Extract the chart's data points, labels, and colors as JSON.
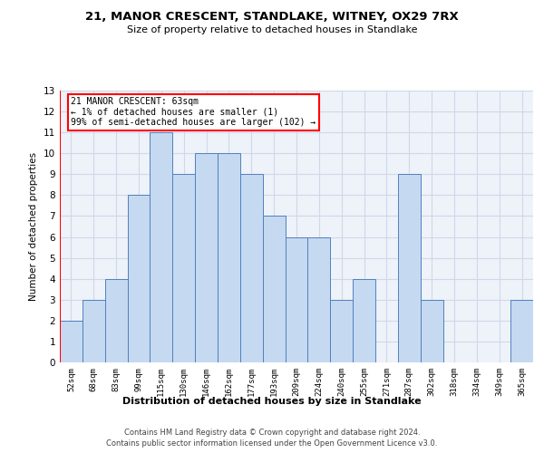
{
  "title": "21, MANOR CRESCENT, STANDLAKE, WITNEY, OX29 7RX",
  "subtitle": "Size of property relative to detached houses in Standlake",
  "xlabel": "Distribution of detached houses by size in Standlake",
  "ylabel": "Number of detached properties",
  "categories": [
    "52sqm",
    "68sqm",
    "83sqm",
    "99sqm",
    "115sqm",
    "130sqm",
    "146sqm",
    "162sqm",
    "177sqm",
    "193sqm",
    "209sqm",
    "224sqm",
    "240sqm",
    "255sqm",
    "271sqm",
    "287sqm",
    "302sqm",
    "318sqm",
    "334sqm",
    "349sqm",
    "365sqm"
  ],
  "values": [
    2,
    3,
    4,
    8,
    11,
    9,
    10,
    10,
    9,
    7,
    6,
    6,
    3,
    4,
    0,
    9,
    3,
    0,
    0,
    0,
    3
  ],
  "bar_color": "#c5d9f1",
  "bar_edge_color": "#4f81bd",
  "annotation_text": "21 MANOR CRESCENT: 63sqm\n← 1% of detached houses are smaller (1)\n99% of semi-detached houses are larger (102) →",
  "ylim": [
    0,
    13
  ],
  "yticks": [
    0,
    1,
    2,
    3,
    4,
    5,
    6,
    7,
    8,
    9,
    10,
    11,
    12,
    13
  ],
  "footer_line1": "Contains HM Land Registry data © Crown copyright and database right 2024.",
  "footer_line2": "Contains public sector information licensed under the Open Government Licence v3.0.",
  "grid_color": "#d0d8e8",
  "background_color": "#eef2f9"
}
